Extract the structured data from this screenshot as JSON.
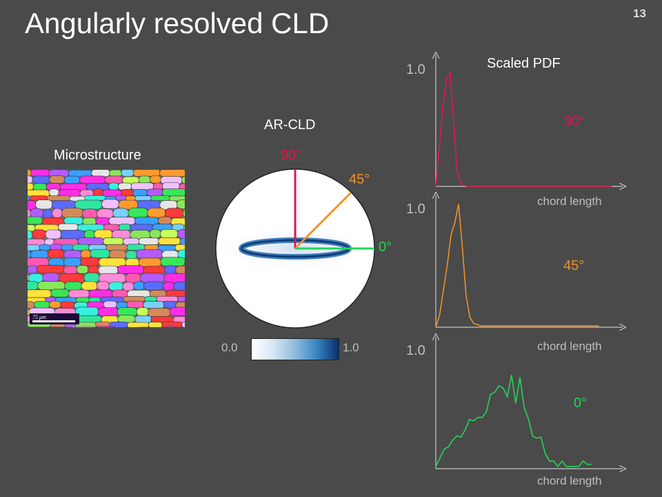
{
  "slide": {
    "title": "Angularly resolved CLD",
    "number": "13"
  },
  "microstructure": {
    "label": "Microstructure",
    "scale_text": "75 μm"
  },
  "arcld": {
    "label": "AR-CLD",
    "angle_labels": {
      "deg90": "90°",
      "deg45": "45°",
      "deg0": "0°"
    },
    "colorbar": {
      "min_label": "0.0",
      "max_label": "1.0"
    }
  },
  "pdf": {
    "title": "Scaled PDF",
    "y_max_label": "1.0",
    "x_label": "chord length",
    "colors": {
      "deg90": "#e0174f",
      "deg45": "#f0912a",
      "deg0": "#22d65a"
    },
    "curves": {
      "deg90": {
        "angle": "90°",
        "values": [
          0,
          0.35,
          0.7,
          0.93,
          1.0,
          0.6,
          0.15,
          0.03,
          0.01,
          0,
          0,
          0,
          0,
          0,
          0,
          0,
          0,
          0,
          0,
          0,
          0,
          0,
          0,
          0,
          0,
          0,
          0,
          0,
          0,
          0,
          0,
          0,
          0,
          0,
          0,
          0,
          0,
          0,
          0,
          0,
          0,
          0,
          0,
          0,
          0,
          0,
          0,
          0,
          0,
          0,
          0
        ]
      },
      "deg45": {
        "angle": "45°",
        "values": [
          0,
          0.1,
          0.3,
          0.5,
          0.75,
          0.85,
          1.0,
          0.65,
          0.25,
          0.08,
          0.03,
          0.02,
          0.01,
          0.01,
          0.01,
          0.01,
          0.01,
          0.01,
          0.01,
          0.01,
          0.01,
          0.01,
          0.01,
          0.01,
          0.01,
          0.01,
          0.01,
          0.01,
          0.01,
          0.01,
          0.01,
          0.01,
          0.01,
          0.01,
          0.01,
          0.01,
          0.01,
          0.01,
          0.01,
          0.01,
          0.01,
          0.01,
          0.01,
          0.01
        ]
      },
      "deg0": {
        "angle": "0°",
        "values": [
          0.02,
          0.1,
          0.18,
          0.2,
          0.26,
          0.3,
          0.29,
          0.36,
          0.45,
          0.44,
          0.47,
          0.47,
          0.52,
          0.68,
          0.7,
          0.76,
          0.74,
          0.66,
          0.86,
          0.6,
          0.84,
          0.56,
          0.46,
          0.3,
          0.28,
          0.29,
          0.14,
          0.07,
          0.07,
          0.02,
          0.07,
          0.02,
          0.02,
          0.02,
          0.02,
          0.07,
          0.04,
          0.04
        ]
      }
    }
  }
}
